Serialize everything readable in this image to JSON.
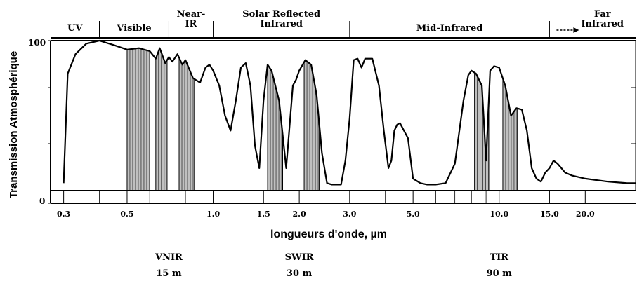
{
  "chart_data": {
    "type": "area",
    "title": "",
    "xlabel": "longueurs d'onde, µm",
    "ylabel": "Transmission Atmosphérique",
    "y_ticks": [
      "100",
      "0"
    ],
    "ylim": [
      0,
      100
    ],
    "x_scale": "log",
    "x_ticks": [
      "0.3",
      "0.5",
      "1.0",
      "1.5",
      "2.0",
      "3.0",
      "5.0",
      "10.0",
      "15.0",
      "20.0"
    ],
    "x_tick_values": [
      0.3,
      0.5,
      1.0,
      1.5,
      2.0,
      3.0,
      5.0,
      10.0,
      15.0,
      20.0
    ],
    "xlim": [
      0.27,
      30
    ],
    "regions": [
      {
        "label": "UV",
        "from": 0.27,
        "to": 0.4
      },
      {
        "label": "Visible",
        "from": 0.4,
        "to": 0.7
      },
      {
        "label": "Near-\nIR",
        "from": 0.7,
        "to": 1.0
      },
      {
        "label": "Solar Reflected\nInfrared",
        "from": 1.0,
        "to": 3.0
      },
      {
        "label": "Mid-Infrared",
        "from": 3.0,
        "to": 15.0
      },
      {
        "label": "Far\nInfrared",
        "from": 15.0,
        "to": 30.0,
        "arrow": true
      }
    ],
    "series": [
      {
        "x": [
          0.3,
          0.31,
          0.33,
          0.36,
          0.4,
          0.45,
          0.5,
          0.55,
          0.6,
          0.63,
          0.65,
          0.68,
          0.7,
          0.72,
          0.75,
          0.78,
          0.8,
          0.85,
          0.9,
          0.94,
          0.97,
          1.0,
          1.05,
          1.1,
          1.15,
          1.2,
          1.25,
          1.3,
          1.35,
          1.4,
          1.45,
          1.5,
          1.55,
          1.6,
          1.7,
          1.8,
          1.9,
          1.95,
          2.0,
          2.1,
          2.2,
          2.3,
          2.4,
          2.5,
          2.6,
          2.7,
          2.8,
          2.9,
          3.0,
          3.1,
          3.2,
          3.3,
          3.4,
          3.6,
          3.8,
          3.95,
          4.1,
          4.2,
          4.3,
          4.4,
          4.5,
          4.8,
          5.0,
          5.3,
          5.6,
          6.0,
          6.5,
          7.0,
          7.5,
          7.8,
          8.0,
          8.3,
          8.7,
          9.0,
          9.3,
          9.6,
          10.0,
          10.5,
          11.0,
          11.5,
          12.0,
          12.5,
          13.0,
          13.5,
          14.0,
          14.5,
          15.0,
          15.5,
          16.0,
          16.5,
          17.0,
          18.0,
          20.0,
          24.0,
          28.0,
          30.0
        ],
        "values": [
          5,
          78,
          91,
          98,
          100,
          97,
          94,
          95,
          93,
          88,
          95,
          85,
          89,
          86,
          91,
          84,
          87,
          75,
          72,
          82,
          84,
          80,
          70,
          50,
          40,
          60,
          82,
          85,
          70,
          30,
          15,
          60,
          84,
          80,
          60,
          15,
          70,
          74,
          80,
          87,
          84,
          64,
          25,
          5,
          4,
          4,
          4,
          20,
          48,
          87,
          88,
          82,
          88,
          88,
          70,
          40,
          15,
          20,
          40,
          44,
          45,
          35,
          8,
          5,
          4,
          4,
          5,
          18,
          60,
          77,
          80,
          78,
          70,
          20,
          80,
          83,
          82,
          70,
          50,
          55,
          54,
          40,
          15,
          8,
          6,
          12,
          15,
          20,
          18,
          15,
          12,
          10,
          8,
          6,
          5,
          5
        ]
      }
    ],
    "bands": [
      {
        "from": 0.5,
        "to": 0.6
      },
      {
        "from": 0.63,
        "to": 0.69
      },
      {
        "from": 0.76,
        "to": 0.86
      },
      {
        "from": 1.55,
        "to": 1.75
      },
      {
        "from": 2.08,
        "to": 2.35
      },
      {
        "from": 8.2,
        "to": 9.2
      },
      {
        "from": 10.3,
        "to": 11.6
      }
    ],
    "sensors": [
      {
        "name": "VNIR",
        "resolution": "15 m",
        "center": 0.7
      },
      {
        "name": "SWIR",
        "resolution": "30 m",
        "center": 2.0
      },
      {
        "name": "TIR",
        "resolution": "90 m",
        "center": 10.0
      }
    ]
  },
  "colors": {
    "line": "#000000",
    "band_fill": "#c0c0c0",
    "background": "#ffffff"
  }
}
